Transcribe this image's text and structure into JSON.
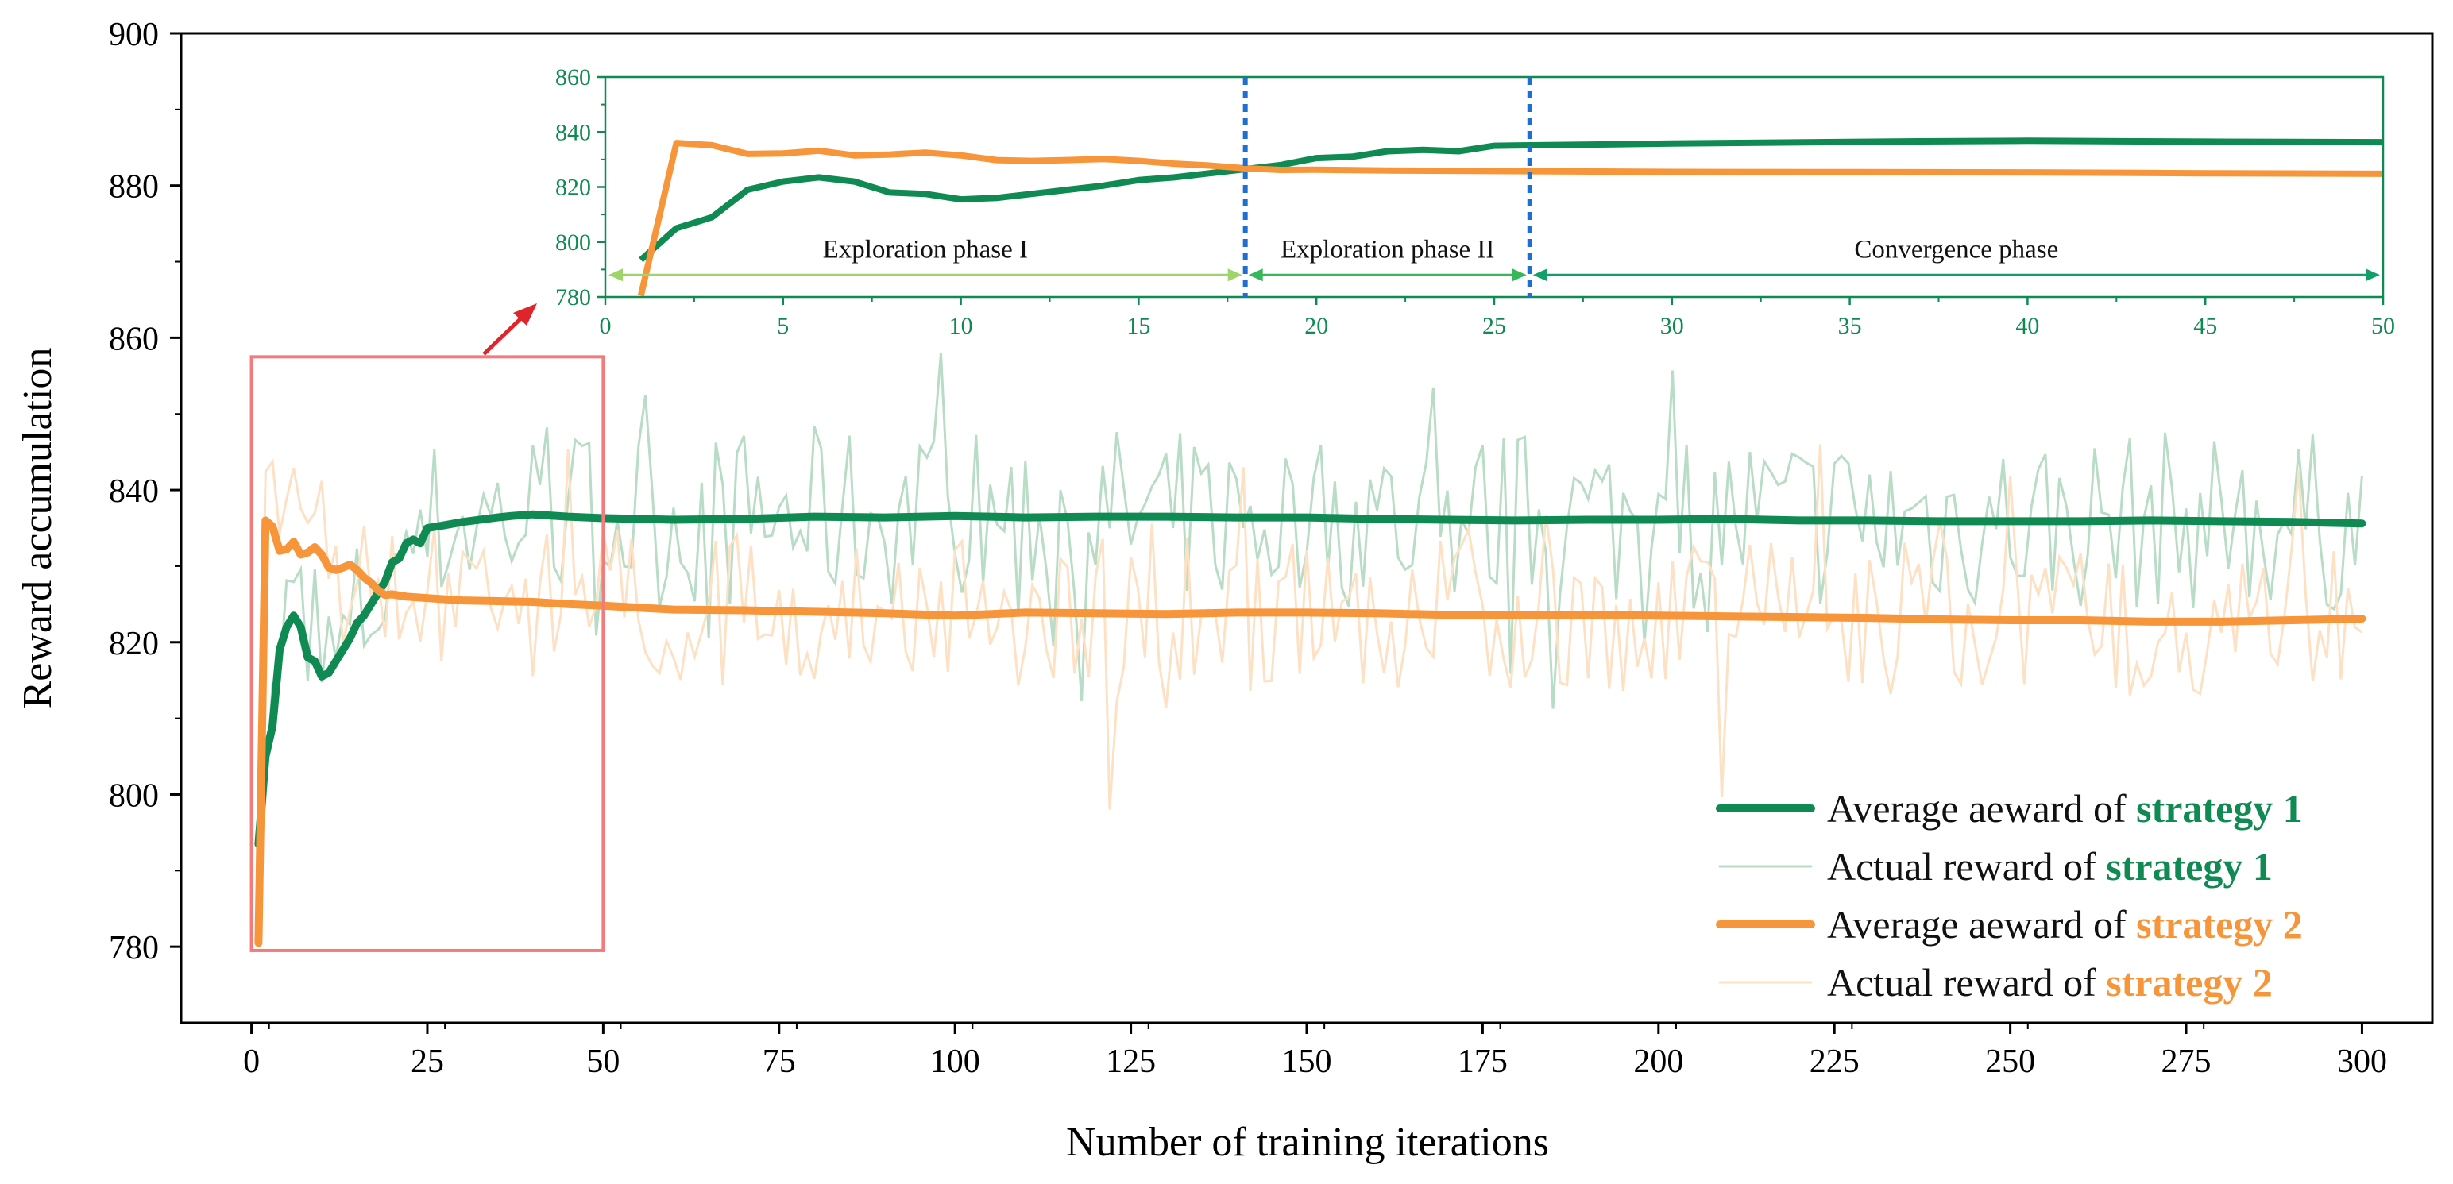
{
  "chart_data": [
    {
      "name": "main",
      "type": "line",
      "xlabel": "Number of training iterations",
      "ylabel": "Reward accumulation",
      "xlim": [
        -10,
        310
      ],
      "ylim": [
        770,
        900
      ],
      "xticks": [
        0,
        25,
        50,
        75,
        100,
        125,
        150,
        175,
        200,
        225,
        250,
        275,
        300
      ],
      "yticks": [
        780,
        800,
        820,
        840,
        860,
        880,
        900
      ],
      "legend": {
        "placement": "bottom-right",
        "entries": [
          {
            "prefix": "Average aeward of ",
            "strategy": "strategy 1",
            "style": "thick",
            "color": "#0f8a52"
          },
          {
            "prefix": "Actual reward of ",
            "strategy": "strategy 1",
            "style": "thin",
            "color": "#b9dcc6"
          },
          {
            "prefix": "Average aeward of ",
            "strategy": "strategy 2",
            "style": "thick",
            "color": "#f7953a"
          },
          {
            "prefix": "Actual reward of ",
            "strategy": "strategy 2",
            "style": "thin",
            "color": "#fde1c5"
          }
        ]
      },
      "series": [
        {
          "name": "Average aeward of strategy 1",
          "color": "#0f8a52",
          "points": [
            [
              1,
              793.5
            ],
            [
              2,
              805
            ],
            [
              3,
              809
            ],
            [
              4,
              819
            ],
            [
              5,
              822
            ],
            [
              6,
              823.5
            ],
            [
              7,
              822
            ],
            [
              8,
              818
            ],
            [
              9,
              817.5
            ],
            [
              10,
              815.5
            ],
            [
              11,
              816
            ],
            [
              12,
              817.5
            ],
            [
              13,
              819
            ],
            [
              14,
              820.5
            ],
            [
              15,
              822.5
            ],
            [
              16,
              823.5
            ],
            [
              17,
              825
            ],
            [
              18,
              826.5
            ],
            [
              19,
              828
            ],
            [
              20,
              830.5
            ],
            [
              21,
              831
            ],
            [
              22,
              833
            ],
            [
              23,
              833.5
            ],
            [
              24,
              833
            ],
            [
              25,
              835
            ],
            [
              27,
              835.3
            ],
            [
              30,
              835.8
            ],
            [
              35,
              836.4
            ],
            [
              37,
              836.6
            ],
            [
              40,
              836.8
            ],
            [
              45,
              836.5
            ],
            [
              50,
              836.3
            ],
            [
              60,
              836.1
            ],
            [
              70,
              836.2
            ],
            [
              80,
              836.5
            ],
            [
              90,
              836.4
            ],
            [
              100,
              836.6
            ],
            [
              110,
              836.4
            ],
            [
              120,
              836.5
            ],
            [
              130,
              836.5
            ],
            [
              140,
              836.4
            ],
            [
              150,
              836.4
            ],
            [
              160,
              836.2
            ],
            [
              170,
              836.1
            ],
            [
              180,
              836
            ],
            [
              190,
              836.1
            ],
            [
              200,
              836.1
            ],
            [
              210,
              836.2
            ],
            [
              220,
              836
            ],
            [
              230,
              836
            ],
            [
              240,
              835.9
            ],
            [
              250,
              835.9
            ],
            [
              260,
              835.9
            ],
            [
              270,
              836
            ],
            [
              280,
              835.9
            ],
            [
              290,
              835.8
            ],
            [
              300,
              835.6
            ]
          ]
        },
        {
          "name": "Average aeward of strategy 2",
          "color": "#f7953a",
          "points": [
            [
              1,
              780.5
            ],
            [
              2,
              836
            ],
            [
              3,
              835.2
            ],
            [
              4,
              832
            ],
            [
              5,
              832.2
            ],
            [
              6,
              833.2
            ],
            [
              7,
              831.5
            ],
            [
              8,
              831.8
            ],
            [
              9,
              832.5
            ],
            [
              10,
              831.5
            ],
            [
              11,
              829.8
            ],
            [
              12,
              829.5
            ],
            [
              13,
              829.8
            ],
            [
              14,
              830.2
            ],
            [
              15,
              829.5
            ],
            [
              16,
              828.5
            ],
            [
              17,
              827.8
            ],
            [
              18,
              826.8
            ],
            [
              19,
              826.2
            ],
            [
              20,
              826.3
            ],
            [
              22,
              826
            ],
            [
              25,
              825.8
            ],
            [
              30,
              825.5
            ],
            [
              35,
              825.4
            ],
            [
              40,
              825.3
            ],
            [
              45,
              825
            ],
            [
              50,
              824.8
            ],
            [
              60,
              824.3
            ],
            [
              70,
              824.2
            ],
            [
              80,
              824
            ],
            [
              90,
              823.8
            ],
            [
              100,
              823.5
            ],
            [
              110,
              823.9
            ],
            [
              120,
              823.8
            ],
            [
              130,
              823.7
            ],
            [
              140,
              823.9
            ],
            [
              150,
              823.9
            ],
            [
              160,
              823.8
            ],
            [
              170,
              823.6
            ],
            [
              180,
              823.6
            ],
            [
              190,
              823.6
            ],
            [
              200,
              823.5
            ],
            [
              210,
              823.4
            ],
            [
              220,
              823.3
            ],
            [
              230,
              823.2
            ],
            [
              240,
              823
            ],
            [
              250,
              822.9
            ],
            [
              260,
              822.9
            ],
            [
              270,
              822.7
            ],
            [
              280,
              822.7
            ],
            [
              290,
              822.9
            ],
            [
              300,
              823.1
            ]
          ]
        }
      ],
      "noise_series": [
        {
          "name": "Actual reward of strategy 1",
          "color": "#b9dcc6",
          "seed": 7,
          "amplitude": 12,
          "min": 787,
          "max": 863
        },
        {
          "name": "Actual reward of strategy 2",
          "color": "#fde1c5",
          "seed": 13,
          "amplitude": 10,
          "min": 790,
          "max": 892
        }
      ],
      "highlight_box": {
        "x": [
          0,
          50
        ],
        "y": [
          779.5,
          857.5
        ],
        "color": "#f47b7b"
      }
    },
    {
      "name": "inset",
      "type": "line",
      "xlim": [
        0,
        50
      ],
      "ylim": [
        780,
        860
      ],
      "xticks": [
        0,
        5,
        10,
        15,
        20,
        25,
        30,
        35,
        40,
        45,
        50
      ],
      "yticks": [
        780,
        800,
        820,
        840,
        860
      ],
      "axis_color": "#0f8a52",
      "phase_dividers": [
        18,
        26
      ],
      "phases": [
        {
          "label": "Exploration phase I",
          "x_start": 0,
          "x_end": 18,
          "color": "#9fd46a"
        },
        {
          "label": "Exploration phase II",
          "x_start": 18,
          "x_end": 26,
          "color": "#35b85a"
        },
        {
          "label": "Convergence phase",
          "x_start": 26,
          "x_end": 50,
          "color": "#12a06a"
        }
      ]
    }
  ]
}
